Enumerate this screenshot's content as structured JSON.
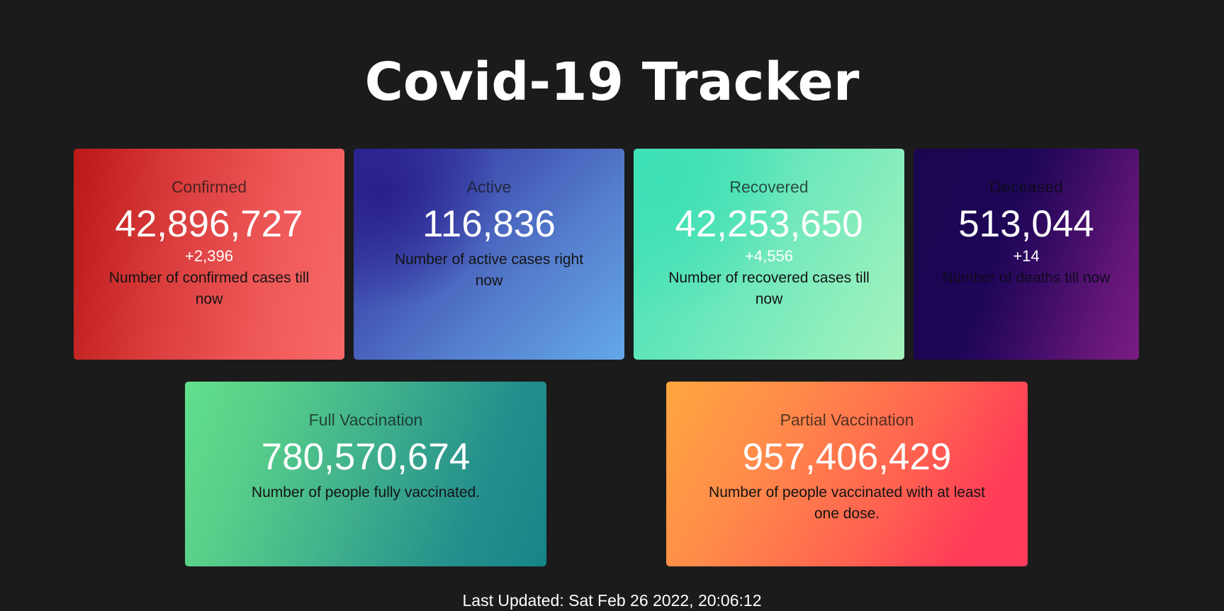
{
  "header": {
    "title": "Covid-19 Tracker"
  },
  "stats": {
    "confirmed": {
      "label": "Confirmed",
      "value": "42,896,727",
      "delta": "+2,396",
      "description": "Number of confirmed cases till now"
    },
    "active": {
      "label": "Active",
      "value": "116,836",
      "description": "Number of active cases right now"
    },
    "recovered": {
      "label": "Recovered",
      "value": "42,253,650",
      "delta": "+4,556",
      "description": "Number of recovered cases till now"
    },
    "deceased": {
      "label": "Deceased",
      "value": "513,044",
      "delta": "+14",
      "description": "Number of deaths till now"
    }
  },
  "vaccination": {
    "full": {
      "label": "Full Vaccination",
      "value": "780,570,674",
      "description": "Number of people fully vaccinated."
    },
    "partial": {
      "label": "Partial Vaccination",
      "value": "957,406,429",
      "description": "Number of people vaccinated with at least one dose."
    }
  },
  "footer": {
    "last_updated": "Last Updated: Sat Feb 26 2022, 20:06:12"
  },
  "colors": {
    "background": "#1b1b1b",
    "confirmed": "#d93b3b",
    "active": "#3f4fb0",
    "recovered": "#66e6bb",
    "deceased": "#3c0c66",
    "full_vaccination": "#3fae8c",
    "partial_vaccination": "#ff6450"
  }
}
